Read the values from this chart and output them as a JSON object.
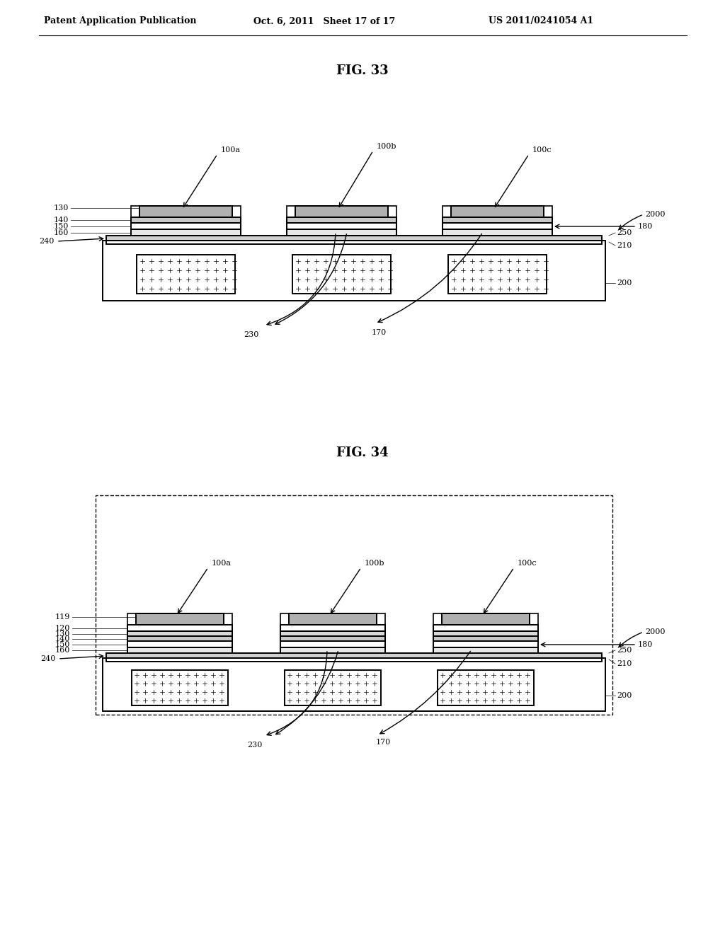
{
  "header_left": "Patent Application Publication",
  "header_mid": "Oct. 6, 2011   Sheet 17 of 17",
  "header_right": "US 2011/0241054 A1",
  "fig33_title": "FIG. 33",
  "fig34_title": "FIG. 34",
  "bg_color": "#ffffff",
  "line_color": "#000000"
}
